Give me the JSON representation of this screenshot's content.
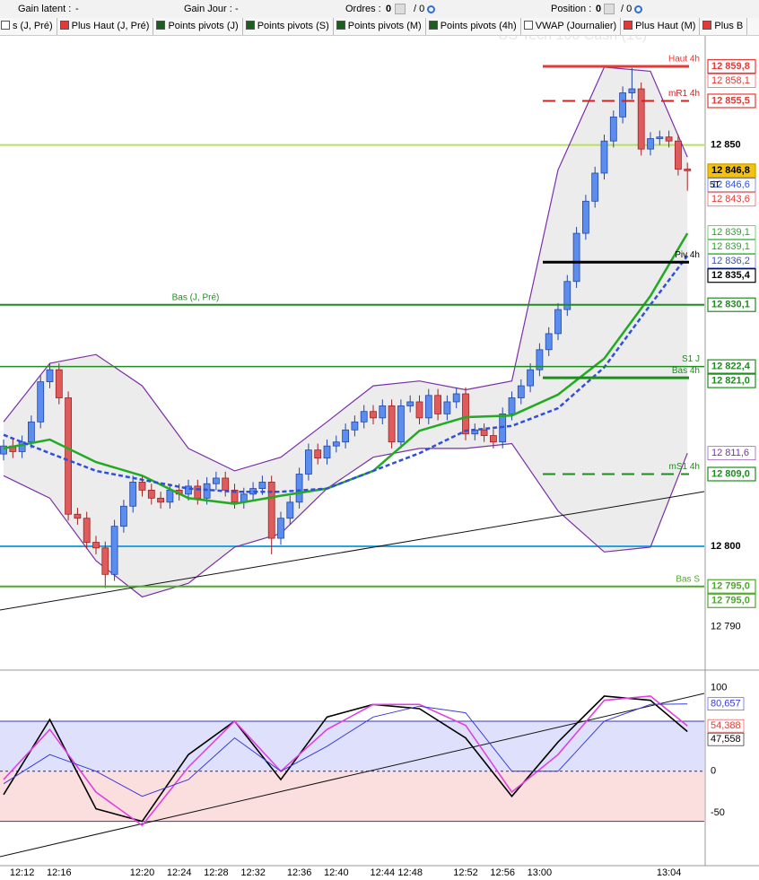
{
  "toolbar": {
    "gain_latent": "Gain latent :",
    "gain_latent_value": "-",
    "gain_jour": "Gain Jour :",
    "gain_jour_value": "-",
    "ordres": "Ordres :",
    "ordres_value": 0,
    "ordres_total": "/ 0",
    "position": "Position :",
    "position_value": 0,
    "position_total": "/ 0"
  },
  "tabs": [
    {
      "label": "s (J, Pré)",
      "icon": "#ffffff"
    },
    {
      "label": "Plus Haut (J, Pré)",
      "icon": "#e53935"
    },
    {
      "label": "Points pivots (J)",
      "icon": "#1b5e20"
    },
    {
      "label": "Points pivots (S)",
      "icon": "#1b5e20"
    },
    {
      "label": "Points pivots (M)",
      "icon": "#1b5e20"
    },
    {
      "label": "Points pivots (4h)",
      "icon": "#1b5e20"
    },
    {
      "label": "VWAP (Journalier)",
      "icon": "#ffffff"
    },
    {
      "label": "Plus Haut (M)",
      "icon": "#e53935"
    },
    {
      "label": "Plus B",
      "icon": "#e53935"
    }
  ],
  "watermark": "US Tech 100 Cash (1€)",
  "chart_data": [
    {
      "type": "candlestick",
      "categories": [
        null,
        null,
        "12:12",
        null,
        null,
        null,
        "12:16",
        null,
        null,
        null,
        null,
        null,
        null,
        null,
        null,
        "12:20",
        null,
        null,
        null,
        "12:24",
        null,
        null,
        null,
        "12:28",
        null,
        null,
        null,
        "12:32",
        null,
        null,
        null,
        null,
        "12:36",
        null,
        null,
        null,
        "12:40",
        null,
        null,
        null,
        null,
        "12:44",
        null,
        null,
        "12:48",
        null,
        null,
        null,
        null,
        null,
        "12:52",
        null,
        null,
        null,
        "12:56",
        null,
        null,
        null,
        "13:00",
        null,
        null,
        null,
        null,
        null,
        null,
        null,
        null,
        null,
        null,
        null,
        null,
        null,
        "13:04",
        null,
        null
      ],
      "open": [
        12811.5,
        12812.5,
        12811.8,
        12813.0,
        12815.5,
        12820.5,
        12822.0,
        12818.5,
        12804.0,
        12803.5,
        12800.5,
        12799.8,
        12796.5,
        12802.5,
        12805.0,
        12808.0,
        12807.0,
        12806.0,
        12805.5,
        12807.0,
        12806.5,
        12807.5,
        12806.0,
        12807.8,
        12808.5,
        12807.0,
        12805.5,
        12806.5,
        12807.2,
        12808.0,
        12801.0,
        12803.5,
        12805.5,
        12809.0,
        12812.0,
        12811.0,
        12812.5,
        12813.0,
        12814.5,
        12815.5,
        12816.8,
        12816.0,
        12817.5,
        12813.0,
        12817.5,
        12818.0,
        12816.0,
        12818.8,
        12816.5,
        12818.0,
        12819.0,
        12814.0,
        12814.5,
        12813.8,
        12813.0,
        12816.5,
        12818.5,
        12820.0,
        12822.0,
        12824.5,
        12826.5,
        12829.5,
        12833.0,
        12839.0,
        12843.0,
        12846.5,
        12850.5,
        12853.5,
        12856.5,
        12857.0,
        12849.5,
        12850.8,
        12851.0,
        12850.5,
        12847.0
      ],
      "high": [
        12813.3,
        12813.3,
        12813.8,
        12816.3,
        12821.3,
        12822.8,
        12822.8,
        12819.3,
        12804.8,
        12804.3,
        12801.3,
        12800.6,
        12803.3,
        12805.8,
        12808.8,
        12808.8,
        12807.8,
        12806.8,
        12807.8,
        12807.8,
        12808.3,
        12808.3,
        12808.6,
        12809.3,
        12809.3,
        12807.8,
        12807.3,
        12808.0,
        12808.8,
        12808.8,
        12804.3,
        12806.3,
        12809.8,
        12812.8,
        12812.8,
        12813.3,
        12813.8,
        12815.3,
        12816.3,
        12817.6,
        12817.6,
        12818.3,
        12818.3,
        12818.3,
        12818.8,
        12818.8,
        12819.6,
        12819.6,
        12818.8,
        12819.8,
        12819.8,
        12815.3,
        12815.3,
        12814.6,
        12817.3,
        12819.3,
        12820.8,
        12822.8,
        12825.3,
        12827.3,
        12830.3,
        12833.8,
        12839.8,
        12843.8,
        12847.3,
        12851.3,
        12854.3,
        12857.3,
        12859.6,
        12857.8,
        12851.6,
        12851.8,
        12851.8,
        12851.3,
        12847.8
      ],
      "low": [
        12810.7,
        12811.0,
        12811.0,
        12812.2,
        12814.7,
        12819.7,
        12817.7,
        12803.2,
        12802.7,
        12799.7,
        12799.0,
        12794.8,
        12795.7,
        12801.7,
        12804.2,
        12806.2,
        12805.2,
        12804.7,
        12804.7,
        12805.7,
        12805.7,
        12805.2,
        12805.2,
        12807.0,
        12806.2,
        12804.7,
        12804.7,
        12805.7,
        12806.4,
        12799.0,
        12800.2,
        12802.7,
        12804.7,
        12808.2,
        12810.2,
        12810.2,
        12811.7,
        12812.2,
        12813.7,
        12814.7,
        12815.2,
        12815.2,
        12812.2,
        12812.2,
        12816.7,
        12815.2,
        12815.2,
        12815.7,
        12815.7,
        12817.2,
        12813.2,
        12813.2,
        12813.0,
        12812.2,
        12812.2,
        12815.7,
        12817.7,
        12819.2,
        12821.2,
        12823.7,
        12825.7,
        12828.7,
        12832.2,
        12838.2,
        12842.2,
        12845.7,
        12849.7,
        12852.7,
        12855.7,
        12848.7,
        12848.7,
        12850.0,
        12849.7,
        12846.2,
        12844.3
      ],
      "close": [
        12812.5,
        12811.8,
        12813.0,
        12815.5,
        12820.5,
        12822.0,
        12818.5,
        12804.0,
        12803.5,
        12800.5,
        12799.8,
        12796.5,
        12802.5,
        12805.0,
        12808.0,
        12807.0,
        12806.0,
        12805.5,
        12807.0,
        12806.5,
        12807.5,
        12806.0,
        12807.8,
        12808.5,
        12807.0,
        12805.5,
        12806.5,
        12807.2,
        12808.0,
        12801.0,
        12803.5,
        12805.5,
        12809.0,
        12812.0,
        12811.0,
        12812.5,
        12813.0,
        12814.5,
        12815.5,
        12816.8,
        12816.0,
        12817.5,
        12813.0,
        12817.5,
        12818.0,
        12816.0,
        12818.8,
        12816.5,
        12818.0,
        12819.0,
        12814.0,
        12814.5,
        12813.8,
        12813.0,
        12816.5,
        12818.5,
        12820.0,
        12822.0,
        12824.5,
        12826.5,
        12829.5,
        12833.0,
        12839.0,
        12843.0,
        12846.5,
        12850.5,
        12853.5,
        12856.5,
        12857.0,
        12849.5,
        12850.8,
        12851.0,
        12850.5,
        12847.0,
        12846.8
      ],
      "up_color": "#5b8def",
      "down_color": "#e05c5c",
      "ylim": [
        12784.8,
        12863.6
      ],
      "yticks": [
        {
          "value": 12850,
          "label": "12 850",
          "line": "#b8e05c"
        },
        {
          "value": 12800,
          "label": "12 800",
          "line": "#29a3e0"
        },
        {
          "value": 12790,
          "label": "12 790"
        }
      ],
      "x": [
        0,
        5,
        10,
        15,
        20,
        25,
        30,
        35,
        40,
        45,
        50,
        55,
        60,
        65,
        70,
        74
      ],
      "band": {
        "color": "#7b2fa8",
        "fill": "#ececec",
        "upper": [
          12815.5,
          12822.8,
          12823.9,
          12820.0,
          12812.2,
          12809.4,
          12811.1,
          12815.5,
          12820.0,
          12820.6,
          12819.5,
          12820.6,
          12846.9,
          12859.7,
          12859.2,
          12848.5
        ],
        "lower": [
          12808.8,
          12806.0,
          12798.2,
          12793.7,
          12795.4,
          12799.9,
          12801.6,
          12807.2,
          12811.1,
          12812.2,
          12812.2,
          12812.8,
          12804.4,
          12799.3,
          12799.9,
          12811.6
        ]
      },
      "series": [
        {
          "color": "#22aa22",
          "dash": false,
          "width": "thick",
          "values": [
            12812.2,
            12813.3,
            12810.5,
            12808.8,
            12806.0,
            12805.3,
            12806.3,
            12807.2,
            12809.4,
            12814.4,
            12816.1,
            12816.3,
            12818.9,
            12823.4,
            12831.2,
            12839.0
          ]
        },
        {
          "color": "#2f4fd8",
          "dash": true,
          "width": "thick",
          "values": [
            12813.9,
            12811.6,
            12809.4,
            12808.3,
            12807.2,
            12806.8,
            12806.8,
            12807.2,
            12809.4,
            12811.6,
            12814.4,
            12815.0,
            12817.2,
            12822.3,
            12830.1,
            12836.2
          ]
        }
      ],
      "levels": [
        {
          "value": 12859.8,
          "label": "Haut 4h",
          "color": "#e53935",
          "dash": false,
          "scope": "session",
          "weight": "thick"
        },
        {
          "value": 12855.5,
          "label": "mR1 4h",
          "color": "#d32020",
          "dash": true,
          "scope": "session",
          "weight": "normal"
        },
        {
          "value": 12835.4,
          "label": "Piv 4h",
          "color": "#000000",
          "dash": false,
          "scope": "session",
          "weight": "thick"
        },
        {
          "value": 12830.1,
          "label": "Bas (J, Pré)",
          "color": "#1e8c1e",
          "dash": false,
          "scope": "full",
          "weight": "normal",
          "align": "center"
        },
        {
          "value": 12822.4,
          "label": "S1 J",
          "color": "#1e8c1e",
          "dash": false,
          "scope": "full",
          "weight": "thin"
        },
        {
          "value": 12821.0,
          "label": "Bas 4h",
          "color": "#1e8c1e",
          "dash": false,
          "scope": "session",
          "weight": "thick"
        },
        {
          "value": 12809.0,
          "label": "mS1 4h",
          "color": "#1e8c1e",
          "dash": true,
          "scope": "session",
          "weight": "normal"
        },
        {
          "value": 12795.0,
          "label": "Bas S",
          "color": "#4ea82a",
          "dash": false,
          "scope": "full",
          "weight": "normal"
        }
      ],
      "price_labels": [
        {
          "value": 12859.8,
          "label": "12 859,8",
          "color": "#e53935",
          "style": "outline"
        },
        {
          "value": 12858.1,
          "label": "12 858,1",
          "color": "#e53935",
          "style": "plain"
        },
        {
          "value": 12855.5,
          "label": "12 855,5",
          "color": "#e53935",
          "style": "outline"
        },
        {
          "value": 12846.8,
          "label": "12 846,8",
          "color": "#f4c20d",
          "style": "filled"
        },
        {
          "value": 12846.6,
          "label": "12 846,6",
          "color": "#2f4fd8",
          "style": "plain"
        },
        {
          "value": 12843.6,
          "label": "12 843,6",
          "color": "#e53935",
          "style": "plain"
        },
        {
          "value": 12839.1,
          "label": "12 839,1",
          "color": "#22aa22",
          "style": "plain"
        },
        {
          "value": 12839.1,
          "label": "12 839,1",
          "color": "#22aa22",
          "style": "plain"
        },
        {
          "value": 12836.2,
          "label": "12 836,2",
          "color": "#2f4fd8",
          "style": "plain"
        },
        {
          "value": 12835.4,
          "label": "12 835,4",
          "color": "#000000",
          "style": "outline"
        },
        {
          "value": 12830.1,
          "label": "12 830,1",
          "color": "#1e8c1e",
          "style": "outline"
        },
        {
          "value": 12822.4,
          "label": "12 822,4",
          "color": "#1e8c1e",
          "style": "outline"
        },
        {
          "value": 12821.0,
          "label": "12 821,0",
          "color": "#1e8c1e",
          "style": "outline"
        },
        {
          "value": 12811.6,
          "label": "12 811,6",
          "color": "#7b2fa8",
          "style": "plain"
        },
        {
          "value": 12809.0,
          "label": "12 809,0",
          "color": "#1e8c1e",
          "style": "outline"
        },
        {
          "value": 12795.0,
          "label": "12 795,0",
          "color": "#4ea82a",
          "style": "outline"
        },
        {
          "value": 12795.0,
          "label": "12 795,0",
          "color": "#4ea82a",
          "style": "outline"
        }
      ],
      "annotation": "5T"
    },
    {
      "type": "line",
      "x": [
        0,
        5,
        10,
        15,
        20,
        25,
        30,
        35,
        40,
        45,
        50,
        55,
        60,
        65,
        70,
        74
      ],
      "ylim": [
        -111,
        118
      ],
      "yticks": [
        100,
        0,
        -50
      ],
      "bands": [
        {
          "from": 0,
          "to": 60,
          "color": "#dfe0fb"
        },
        {
          "from": -60,
          "to": 0,
          "color": "#fbdede"
        }
      ],
      "band_line_color": "#3a3ab0",
      "series": [
        {
          "color": "#000000",
          "values": [
            -28,
            62,
            -45,
            -60,
            20,
            60,
            -10,
            65,
            80,
            75,
            40,
            -30,
            35,
            90,
            85,
            47.558
          ]
        },
        {
          "color": "#e040e0",
          "values": [
            -10,
            50,
            -25,
            -65,
            5,
            60,
            0,
            50,
            80,
            80,
            55,
            -25,
            20,
            85,
            90,
            54.388
          ]
        },
        {
          "color": "#3a3ad8",
          "values": [
            -15,
            20,
            0,
            -30,
            -10,
            40,
            0,
            30,
            65,
            78,
            70,
            0,
            0,
            60,
            80,
            80.657
          ]
        }
      ],
      "value_labels": [
        {
          "value": 80.657,
          "label": "80,657",
          "color": "#3a3ad8"
        },
        {
          "value": 54.388,
          "label": "54,388",
          "color": "#e53935"
        },
        {
          "value": 47.558,
          "label": "47,558",
          "color": "#000000"
        }
      ]
    }
  ]
}
